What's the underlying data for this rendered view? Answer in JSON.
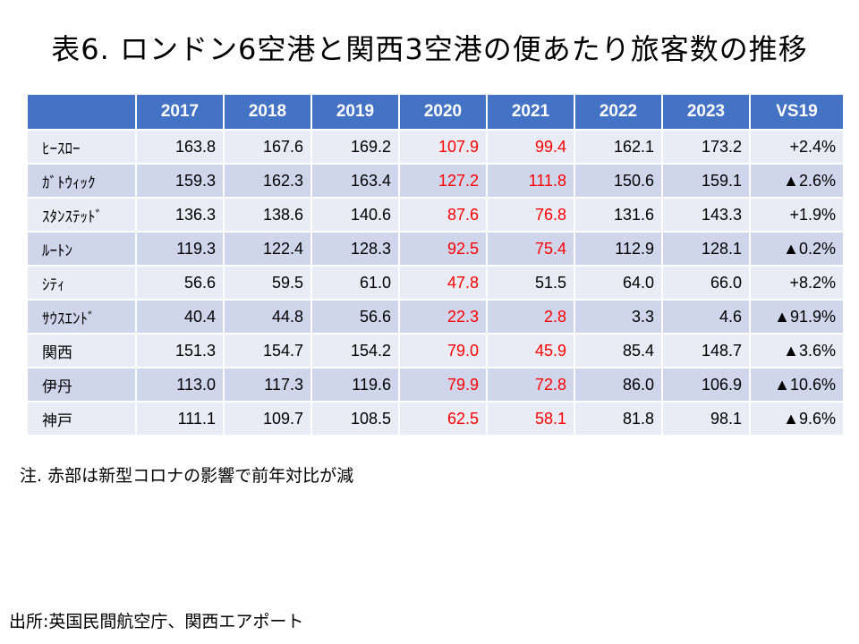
{
  "title": "表6. ロンドン6空港と関西3空港の便あたり旅客数の推移",
  "table": {
    "corner": "",
    "headers": [
      "2017",
      "2018",
      "2019",
      "2020",
      "2021",
      "2022",
      "2023",
      "VS19"
    ],
    "rows": [
      {
        "label": "ﾋｰｽﾛｰ",
        "values": [
          "163.8",
          "167.6",
          "169.2",
          "107.9",
          "99.4",
          "162.1",
          "173.2",
          "+2.4%"
        ],
        "red": [
          3,
          4
        ]
      },
      {
        "label": "ｶﾞﾄｳｨｯｸ",
        "values": [
          "159.3",
          "162.3",
          "163.4",
          "127.2",
          "111.8",
          "150.6",
          "159.1",
          "▲2.6%"
        ],
        "red": [
          3,
          4
        ]
      },
      {
        "label": "ｽﾀﾝｽﾃｯﾄﾞ",
        "values": [
          "136.3",
          "138.6",
          "140.6",
          "87.6",
          "76.8",
          "131.6",
          "143.3",
          "+1.9%"
        ],
        "red": [
          3,
          4
        ]
      },
      {
        "label": "ﾙｰﾄﾝ",
        "values": [
          "119.3",
          "122.4",
          "128.3",
          "92.5",
          "75.4",
          "112.9",
          "128.1",
          "▲0.2%"
        ],
        "red": [
          3,
          4
        ]
      },
      {
        "label": "ｼﾃｨ",
        "values": [
          "56.6",
          "59.5",
          "61.0",
          "47.8",
          "51.5",
          "64.0",
          "66.0",
          "+8.2%"
        ],
        "red": [
          3
        ]
      },
      {
        "label": "ｻｳｽｴﾝﾄﾞ",
        "values": [
          "40.4",
          "44.8",
          "56.6",
          "22.3",
          "2.8",
          "3.3",
          "4.6",
          "▲91.9%"
        ],
        "red": [
          3,
          4
        ]
      },
      {
        "label": "関西",
        "values": [
          "151.3",
          "154.7",
          "154.2",
          "79.0",
          "45.9",
          "85.4",
          "148.7",
          "▲3.6%"
        ],
        "red": [
          3,
          4
        ]
      },
      {
        "label": "伊丹",
        "values": [
          "113.0",
          "117.3",
          "119.6",
          "79.9",
          "72.8",
          "86.0",
          "106.9",
          "▲10.6%"
        ],
        "red": [
          3,
          4
        ]
      },
      {
        "label": "神戸",
        "values": [
          "111.1",
          "109.7",
          "108.5",
          "62.5",
          "58.1",
          "81.8",
          "98.1",
          "▲9.6%"
        ],
        "red": [
          3,
          4
        ]
      }
    ]
  },
  "colors": {
    "header_bg": "#4472c4",
    "row_light": "#e9ebf5",
    "row_dark": "#cfd5ea",
    "highlight_text": "#ff0000"
  },
  "note": "注. 赤部は新型コロナの影響で前年対比が減",
  "source": "出所:英国民間航空庁、関西エアポート"
}
